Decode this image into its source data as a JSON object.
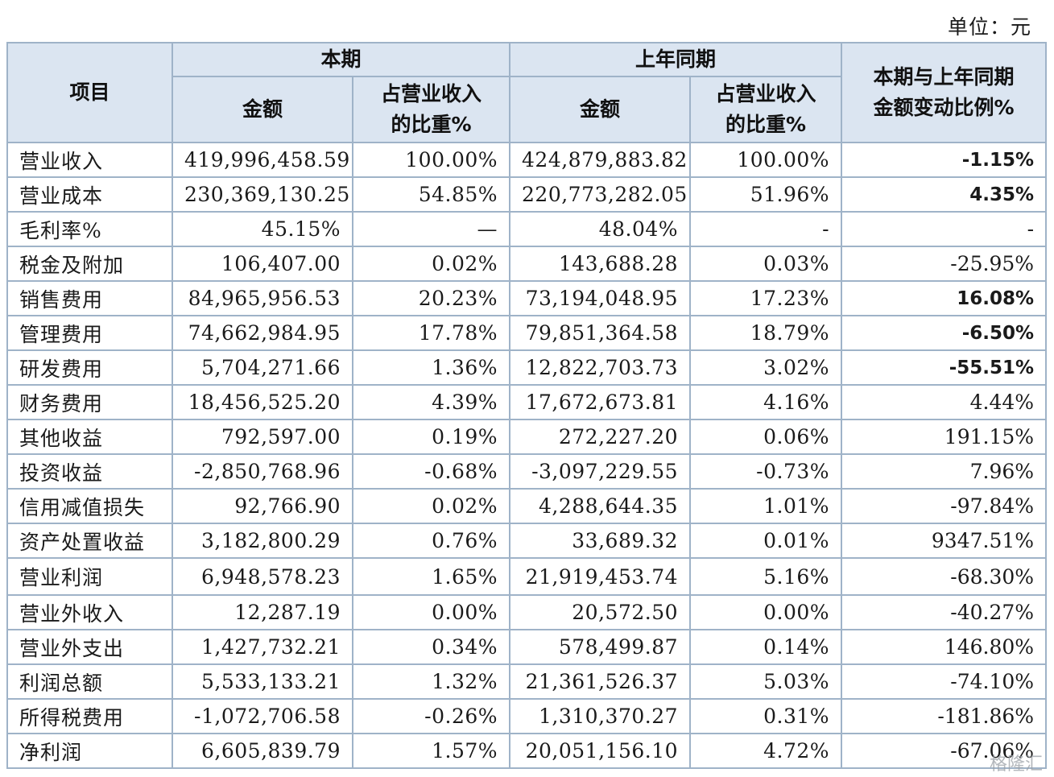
{
  "unit_label": "单位：元",
  "header": {
    "item": "项目",
    "current": "本期",
    "prior": "上年同期",
    "change_line1": "本期与上年同期",
    "change_line2": "金额变动比例%",
    "amount": "金额",
    "share_line1": "占营业收入",
    "share_line2": "的比重%"
  },
  "rows": [
    {
      "item": "营业收入",
      "cur_amt": "419,996,458.59",
      "cur_pct": "100.00%",
      "pri_amt": "424,879,883.82",
      "pri_pct": "100.00%",
      "change": "-1.15%"
    },
    {
      "item": "营业成本",
      "cur_amt": "230,369,130.25",
      "cur_pct": "54.85%",
      "pri_amt": "220,773,282.05",
      "pri_pct": "51.96%",
      "change": "4.35%"
    },
    {
      "item": "毛利率%",
      "cur_amt": "45.15%",
      "cur_pct": "—",
      "pri_amt": "48.04%",
      "pri_pct": "-",
      "change": "-"
    },
    {
      "item": "税金及附加",
      "cur_amt": "106,407.00",
      "cur_pct": "0.02%",
      "pri_amt": "143,688.28",
      "pri_pct": "0.03%",
      "change": "-25.95%"
    },
    {
      "item": "销售费用",
      "cur_amt": "84,965,956.53",
      "cur_pct": "20.23%",
      "pri_amt": "73,194,048.95",
      "pri_pct": "17.23%",
      "change": "16.08%"
    },
    {
      "item": "管理费用",
      "cur_amt": "74,662,984.95",
      "cur_pct": "17.78%",
      "pri_amt": "79,851,364.58",
      "pri_pct": "18.79%",
      "change": "-6.50%"
    },
    {
      "item": "研发费用",
      "cur_amt": "5,704,271.66",
      "cur_pct": "1.36%",
      "pri_amt": "12,822,703.73",
      "pri_pct": "3.02%",
      "change": "-55.51%"
    },
    {
      "item": "财务费用",
      "cur_amt": "18,456,525.20",
      "cur_pct": "4.39%",
      "pri_amt": "17,672,673.81",
      "pri_pct": "4.16%",
      "change": "4.44%"
    },
    {
      "item": "其他收益",
      "cur_amt": "792,597.00",
      "cur_pct": "0.19%",
      "pri_amt": "272,227.20",
      "pri_pct": "0.06%",
      "change": "191.15%"
    },
    {
      "item": "投资收益",
      "cur_amt": "-2,850,768.96",
      "cur_pct": "-0.68%",
      "pri_amt": "-3,097,229.55",
      "pri_pct": "-0.73%",
      "change": "7.96%"
    },
    {
      "item": "信用减值损失",
      "cur_amt": "92,766.90",
      "cur_pct": "0.02%",
      "pri_amt": "4,288,644.35",
      "pri_pct": "1.01%",
      "change": "-97.84%"
    },
    {
      "item": "资产处置收益",
      "cur_amt": "3,182,800.29",
      "cur_pct": "0.76%",
      "pri_amt": "33,689.32",
      "pri_pct": "0.01%",
      "change": "9347.51%"
    },
    {
      "item": "营业利润",
      "cur_amt": "6,948,578.23",
      "cur_pct": "1.65%",
      "pri_amt": "21,919,453.74",
      "pri_pct": "5.16%",
      "change": "-68.30%"
    },
    {
      "item": "营业外收入",
      "cur_amt": "12,287.19",
      "cur_pct": "0.00%",
      "pri_amt": "20,572.50",
      "pri_pct": "0.00%",
      "change": "-40.27%"
    },
    {
      "item": "营业外支出",
      "cur_amt": "1,427,732.21",
      "cur_pct": "0.34%",
      "pri_amt": "578,499.87",
      "pri_pct": "0.14%",
      "change": "146.80%"
    },
    {
      "item": "利润总额",
      "cur_amt": "5,533,133.21",
      "cur_pct": "1.32%",
      "pri_amt": "21,361,526.37",
      "pri_pct": "5.03%",
      "change": "-74.10%"
    },
    {
      "item": "所得税费用",
      "cur_amt": "-1,072,706.58",
      "cur_pct": "-0.26%",
      "pri_amt": "1,310,370.27",
      "pri_pct": "0.31%",
      "change": "-181.86%"
    },
    {
      "item": "净利润",
      "cur_amt": "6,605,839.79",
      "cur_pct": "1.57%",
      "pri_amt": "20,051,156.10",
      "pri_pct": "4.72%",
      "change": "-67.06%"
    }
  ],
  "bold_change_rows": [
    0,
    1,
    4,
    5,
    6
  ],
  "tall_rows": [
    12
  ],
  "watermark": "格隆汇"
}
